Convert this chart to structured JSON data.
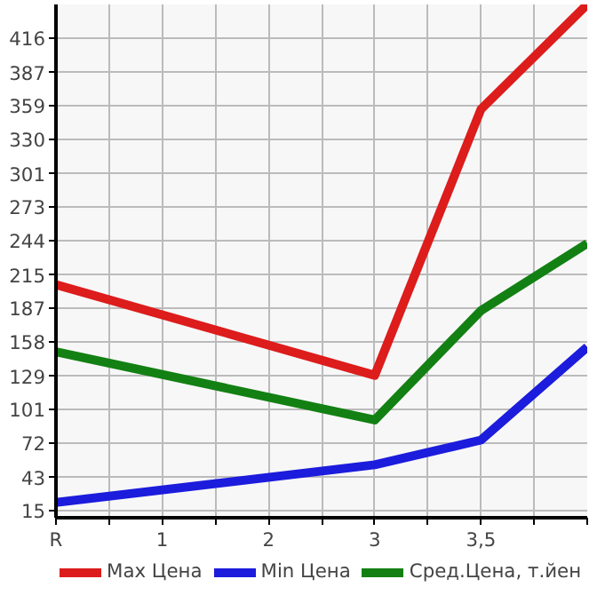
{
  "chart_data": {
    "type": "line",
    "categories": [
      "R",
      "1",
      "2",
      "3",
      "3,5",
      null
    ],
    "series": [
      {
        "name": "Max Цена",
        "color": "#dd1c1c",
        "values": [
          207,
          null,
          null,
          130,
          356,
          445
        ]
      },
      {
        "name": "Min Цена",
        "color": "#1c1cdd",
        "values": [
          22,
          null,
          null,
          54,
          75,
          154
        ]
      },
      {
        "name": "Сред.Цена, т.йен",
        "color": "#138013",
        "values": [
          150,
          null,
          null,
          92,
          185,
          242
        ]
      }
    ],
    "ylim": [
      9,
      445
    ],
    "yticks": [
      15,
      43,
      72,
      101,
      129,
      158,
      187,
      215,
      244,
      273,
      301,
      330,
      359,
      387,
      416
    ],
    "grid": true,
    "legend": "bottom",
    "marker": "none",
    "line_style": "solid"
  }
}
